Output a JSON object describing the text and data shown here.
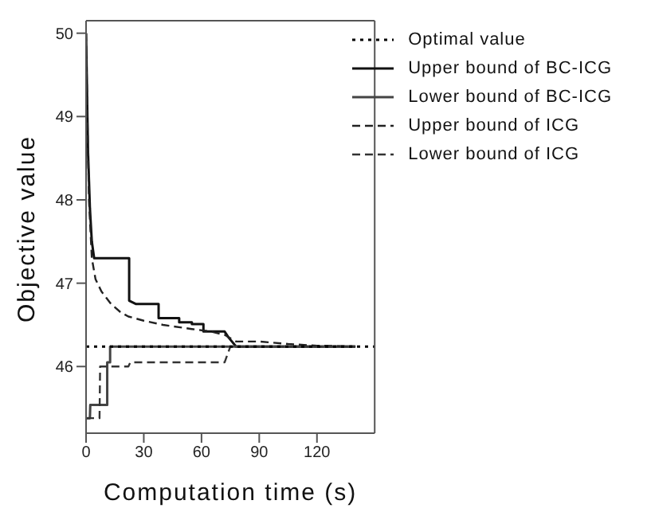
{
  "chart_data": {
    "type": "line",
    "xlabel": "Computation time (s)",
    "ylabel": "Objective value",
    "xlim": [
      0,
      150
    ],
    "ylim": [
      45.2,
      50.15
    ],
    "xticks": [
      0,
      30,
      60,
      90,
      120
    ],
    "yticks": [
      46,
      47,
      48,
      49,
      50
    ],
    "grid": false,
    "legend": "top right",
    "marker": "none",
    "series": [
      {
        "name": "Optimal value",
        "color": "#000000",
        "line_style": "dotted",
        "x": [
          0,
          150
        ],
        "values": [
          46.24,
          46.24
        ]
      },
      {
        "name": "Upper bound of BC-ICG",
        "color": "#111111",
        "line_style": "solid",
        "x": [
          0,
          1,
          2,
          3,
          4.2,
          22.4,
          22.4,
          26,
          37.7,
          37.7,
          48.4,
          48.4,
          55,
          55,
          61,
          61,
          72,
          74,
          78,
          140
        ],
        "values": [
          50,
          48.6,
          47.9,
          47.5,
          47.3,
          47.3,
          46.79,
          46.75,
          46.75,
          46.58,
          46.58,
          46.53,
          46.53,
          46.51,
          46.51,
          46.42,
          46.42,
          46.35,
          46.24,
          46.24
        ]
      },
      {
        "name": "Lower bound of BC-ICG",
        "color": "#444444",
        "line_style": "solid",
        "x": [
          0,
          2,
          2.2,
          11,
          11,
          12.5,
          12.5,
          13.5,
          140
        ],
        "values": [
          45.38,
          45.38,
          45.54,
          45.54,
          46.05,
          46.05,
          46.24,
          46.24,
          46.24
        ]
      },
      {
        "name": "Upper bound of ICG",
        "color": "#222222",
        "line_style": "dashed",
        "x": [
          0,
          1,
          1.5,
          3,
          4.9,
          8,
          13,
          18,
          22,
          30,
          40,
          55,
          65,
          72,
          78,
          90,
          105,
          120,
          140
        ],
        "values": [
          50,
          48.6,
          48,
          47.3,
          47.05,
          46.9,
          46.75,
          46.65,
          46.6,
          46.55,
          46.5,
          46.45,
          46.42,
          46.38,
          46.3,
          46.3,
          46.27,
          46.25,
          46.24
        ]
      },
      {
        "name": "Lower bound of ICG",
        "color": "#333333",
        "line_style": "dashed",
        "x": [
          0,
          7,
          7.3,
          22,
          23,
          72,
          75,
          140
        ],
        "values": [
          45.38,
          45.38,
          46,
          46,
          46.05,
          46.05,
          46.24,
          46.24
        ]
      }
    ]
  }
}
